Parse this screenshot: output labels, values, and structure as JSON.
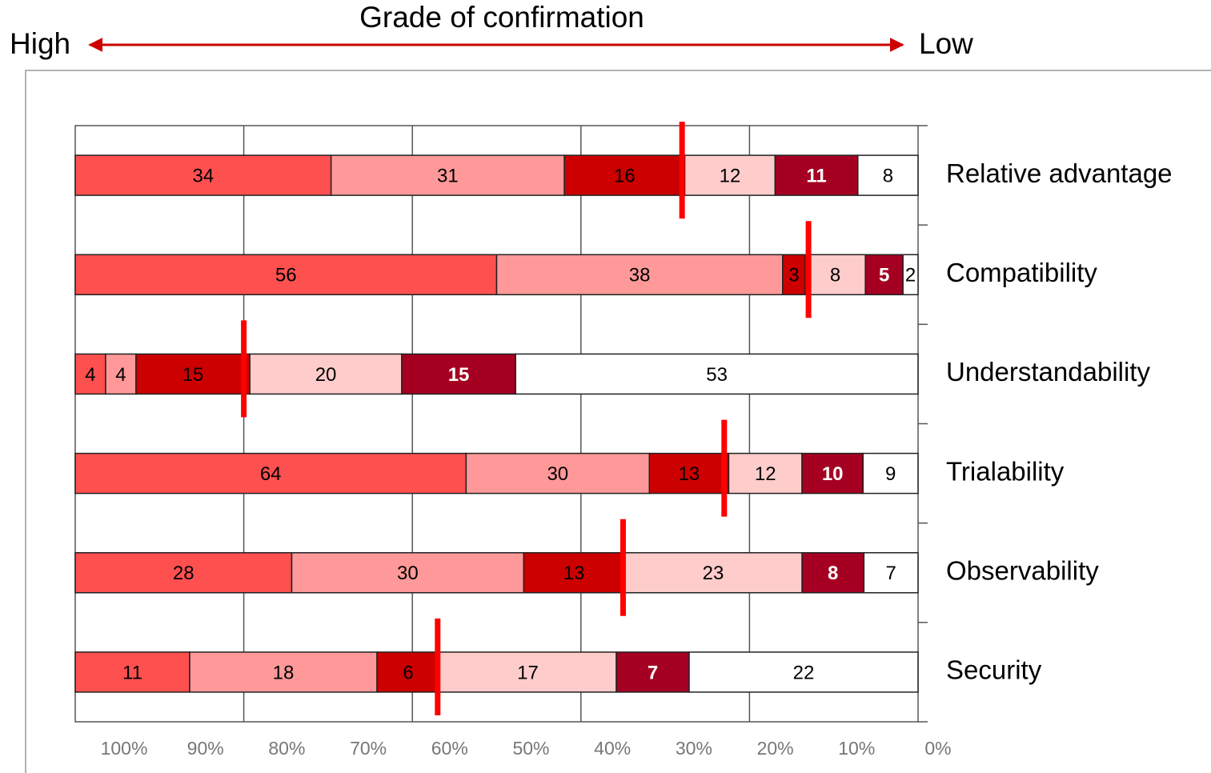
{
  "chart_data": {
    "type": "stacked-bar-100",
    "title": "Grade of confirmation",
    "annotations": {
      "left": "High",
      "right": "Low"
    },
    "categories": [
      "Relative advantage",
      "Compatibility",
      "Understandability",
      "Trialability",
      "Observability",
      "Security"
    ],
    "series": [
      {
        "color": "#ff5050",
        "values": [
          34,
          56,
          4,
          64,
          28,
          11
        ]
      },
      {
        "color": "#ff9999",
        "values": [
          31,
          38,
          4,
          30,
          30,
          18
        ]
      },
      {
        "color": "#cc0000",
        "values": [
          16,
          3,
          15,
          13,
          13,
          6
        ]
      },
      {
        "color": "#ffcccc",
        "values": [
          12,
          8,
          20,
          12,
          23,
          17
        ]
      },
      {
        "color": "#a50021",
        "values": [
          11,
          5,
          15,
          10,
          8,
          7
        ]
      },
      {
        "color": "#ffffff",
        "values": [
          8,
          2,
          53,
          9,
          7,
          22
        ]
      }
    ],
    "markers": {
      "color": "#ff0000",
      "values": [
        28,
        13,
        80,
        23,
        35,
        57
      ]
    },
    "xlim": [
      100,
      0
    ],
    "xticks": [
      {
        "value": 100,
        "label": "100%"
      },
      {
        "value": 90,
        "label": "90%"
      },
      {
        "value": 80,
        "label": "80%"
      },
      {
        "value": 70,
        "label": "70%"
      },
      {
        "value": 60,
        "label": "60%"
      },
      {
        "value": 50,
        "label": "50%"
      },
      {
        "value": 40,
        "label": "40%"
      },
      {
        "value": 30,
        "label": "30%"
      },
      {
        "value": 20,
        "label": "20%"
      },
      {
        "value": 10,
        "label": "10%"
      },
      {
        "value": 0,
        "label": "0%"
      }
    ],
    "grid": true
  }
}
